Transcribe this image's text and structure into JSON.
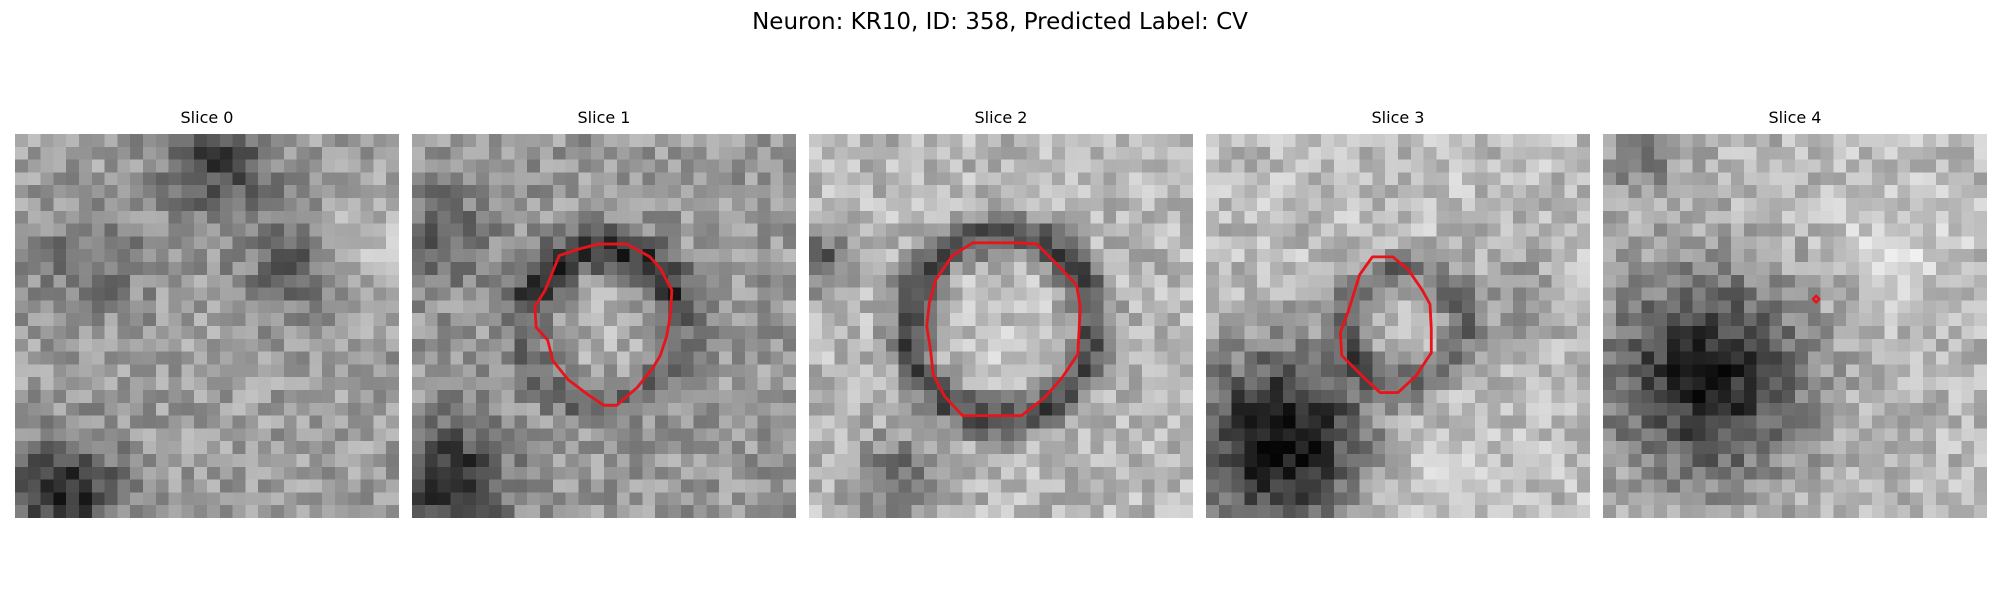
{
  "figure": {
    "title": "Neuron: KR10, ID: 358, Predicted Label: CV",
    "contour_color": "#e8141b",
    "colormap": "grayscale"
  },
  "panels": [
    {
      "title": "Slice 0",
      "has_contour": false
    },
    {
      "title": "Slice 1",
      "has_contour": true
    },
    {
      "title": "Slice 2",
      "has_contour": true
    },
    {
      "title": "Slice 3",
      "has_contour": true
    },
    {
      "title": "Slice 4",
      "has_contour": true
    }
  ]
}
